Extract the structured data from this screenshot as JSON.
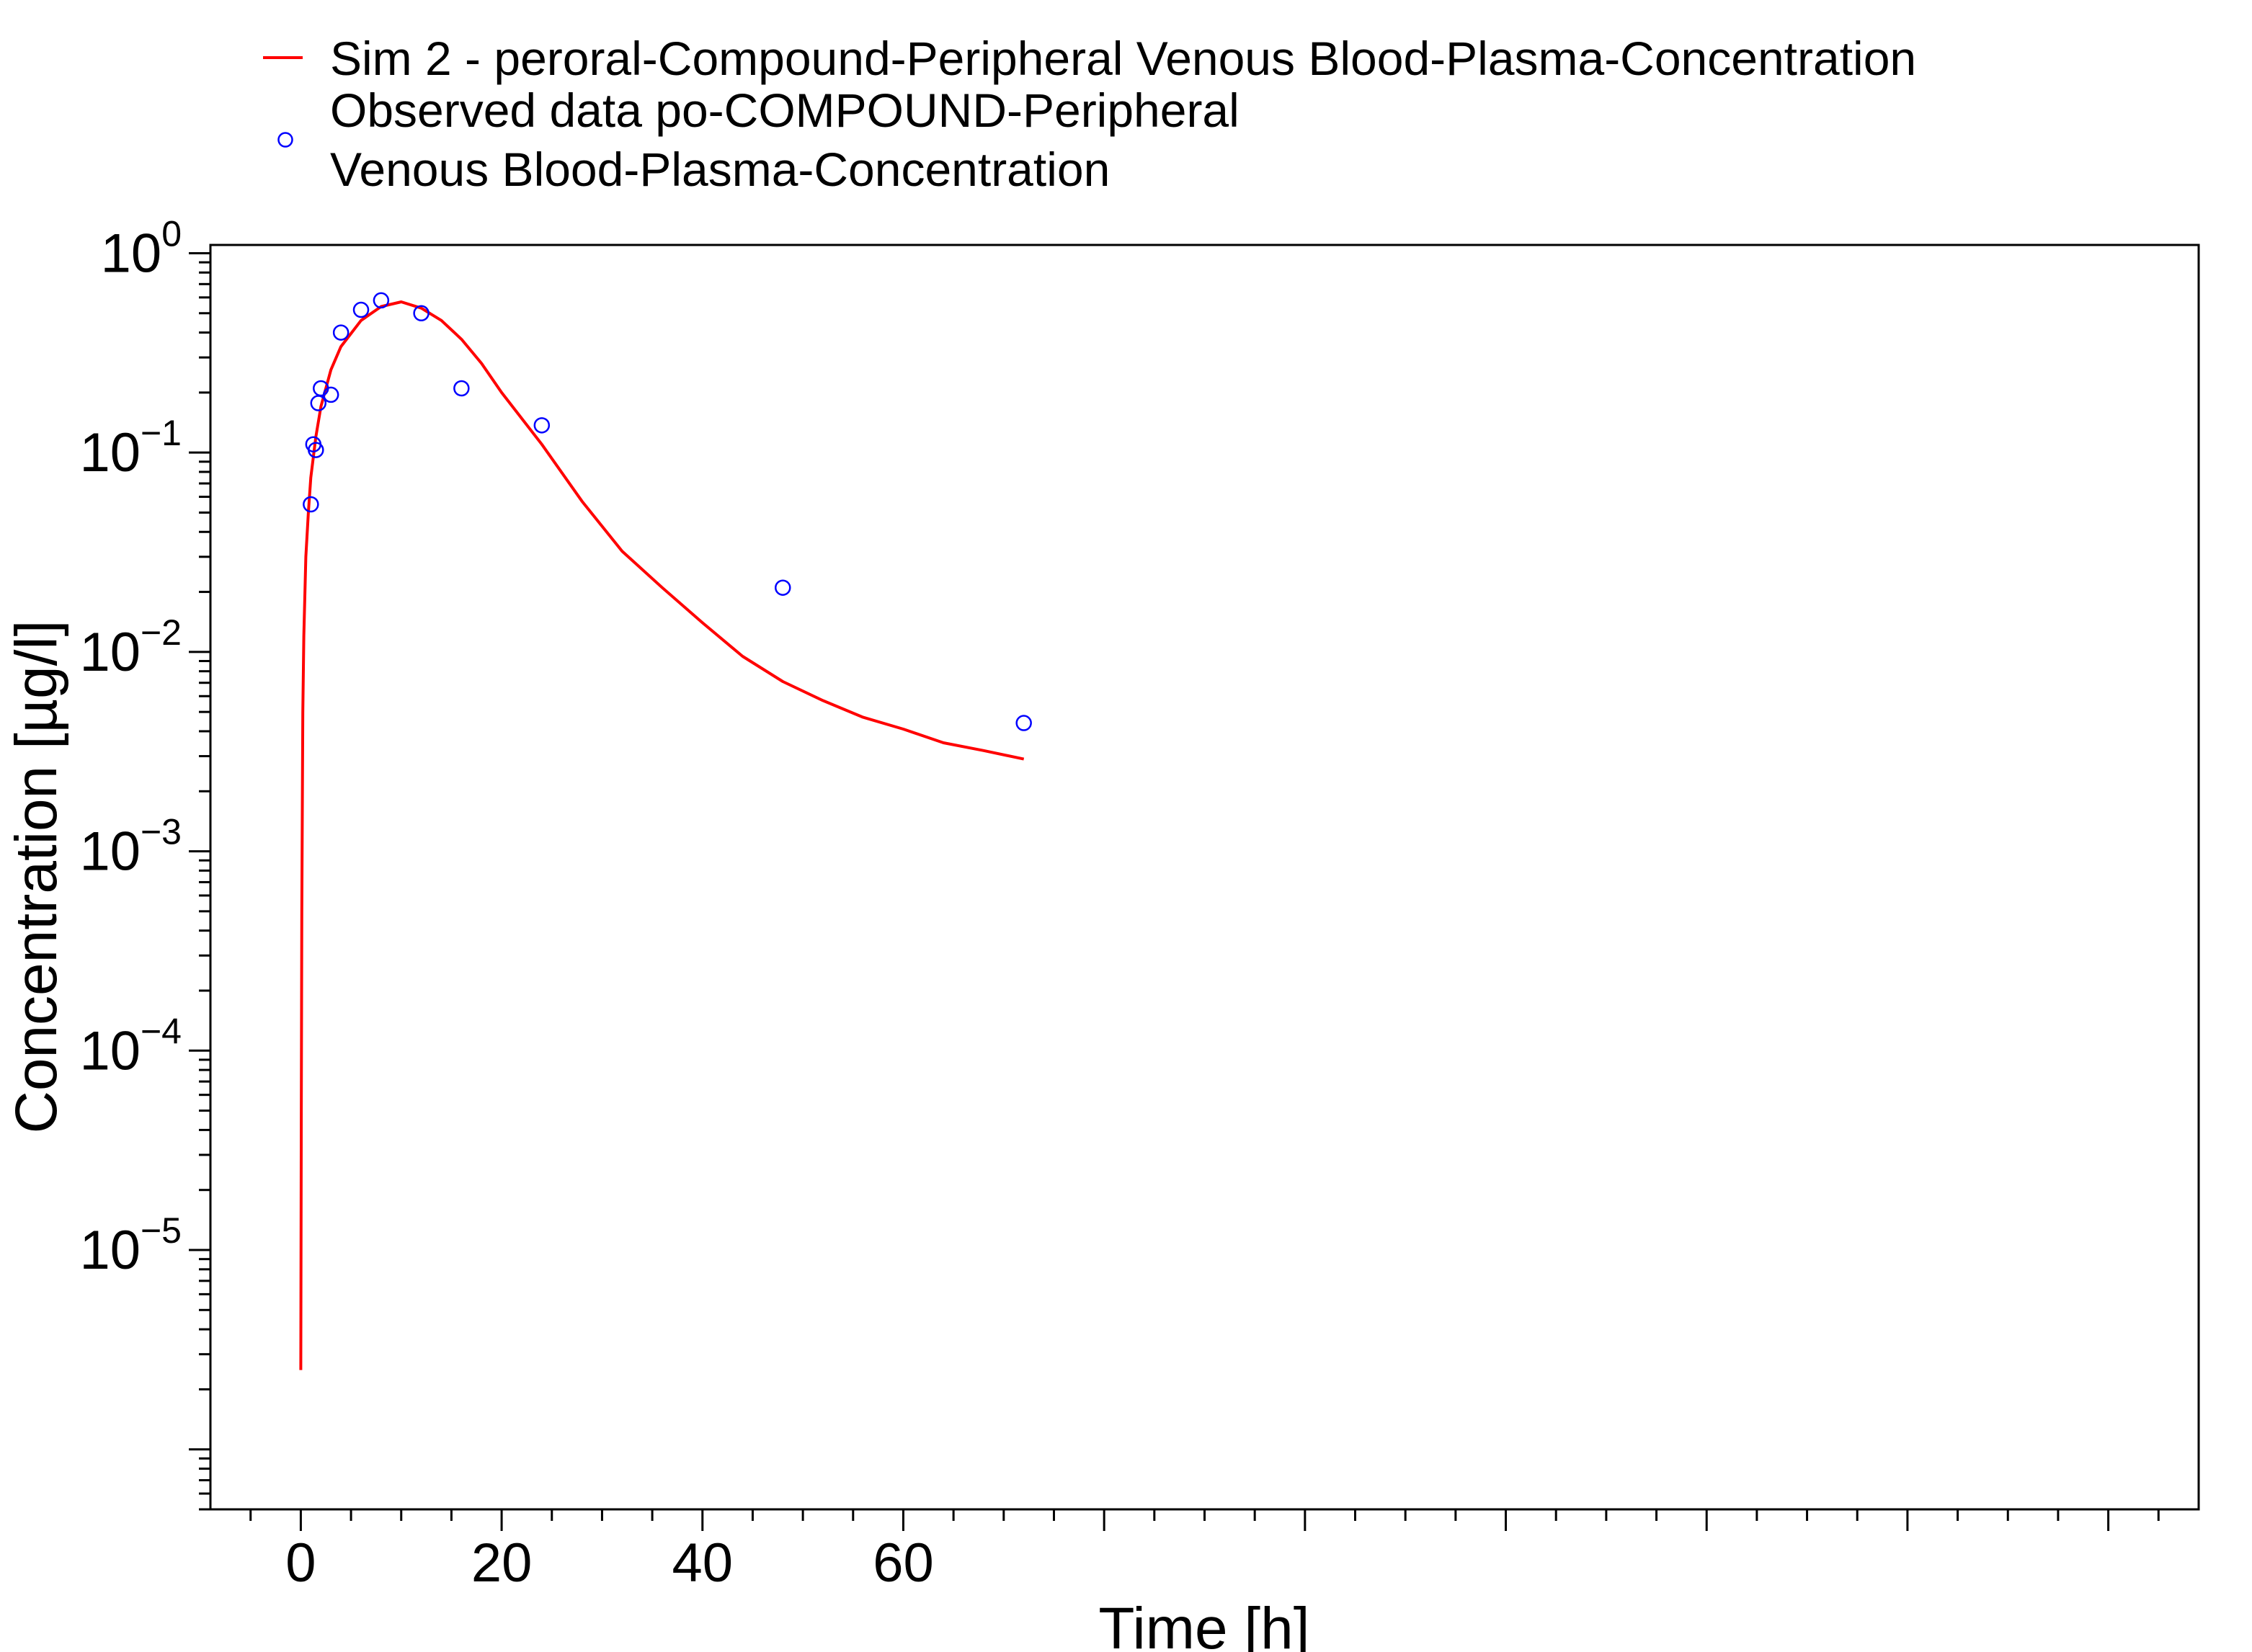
{
  "chart_data": {
    "type": "line",
    "title": "",
    "xlabel": "Time [h]",
    "ylabel": "Concentration [µg/l]",
    "xlim": [
      -9,
      189
    ],
    "ylim": [
      5e-07,
      1.1
    ],
    "y_scale": "log",
    "x_ticks": [
      0,
      20,
      40,
      60
    ],
    "x_tick_labels": [
      "0",
      "20",
      "40",
      "60"
    ],
    "y_ticks": [
      1e-05,
      0.0001,
      0.001,
      0.01,
      0.1,
      1
    ],
    "y_tick_labels": [
      {
        "base": "10",
        "exp": "−5"
      },
      {
        "base": "10",
        "exp": "−4"
      },
      {
        "base": "10",
        "exp": "−3"
      },
      {
        "base": "10",
        "exp": "−2"
      },
      {
        "base": "10",
        "exp": "−1"
      },
      {
        "base": "10",
        "exp": "0"
      }
    ],
    "grid": false,
    "legend_position": "top",
    "series": [
      {
        "name": "Sim 2 - peroral-Compound-Peripheral Venous Blood-Plasma-Concentration",
        "kind": "line",
        "color": "#ff0000",
        "x": [
          0,
          0.05,
          0.1,
          0.2,
          0.3,
          0.5,
          0.75,
          1,
          1.5,
          2,
          3,
          4,
          6,
          8,
          10,
          12,
          14,
          16,
          18,
          20,
          24,
          28,
          32,
          36,
          40,
          44,
          48,
          52,
          56,
          60,
          64,
          68,
          72
        ],
        "y": [
          2.5e-06,
          5e-05,
          0.0005,
          0.005,
          0.012,
          0.03,
          0.05,
          0.075,
          0.12,
          0.17,
          0.26,
          0.34,
          0.46,
          0.54,
          0.57,
          0.53,
          0.46,
          0.37,
          0.28,
          0.2,
          0.11,
          0.057,
          0.032,
          0.021,
          0.014,
          0.0095,
          0.0071,
          0.0057,
          0.0047,
          0.0041,
          0.0035,
          0.0032,
          0.0029
        ]
      },
      {
        "name": "Observed data po-COMPOUND-Peripheral Venous Blood-Plasma-Concentration",
        "name_lines": [
          "Observed data po-COMPOUND-Peripheral",
          "Venous Blood-Plasma-Concentration"
        ],
        "kind": "scatter",
        "color": "#0000ff",
        "x": [
          1,
          1.25,
          1.5,
          1.75,
          2,
          3,
          4,
          6,
          8,
          12,
          16,
          24,
          48,
          72
        ],
        "y": [
          0.055,
          0.11,
          0.103,
          0.177,
          0.21,
          0.195,
          0.4,
          0.52,
          0.58,
          0.5,
          0.21,
          0.137,
          0.021,
          0.0044
        ]
      }
    ]
  }
}
